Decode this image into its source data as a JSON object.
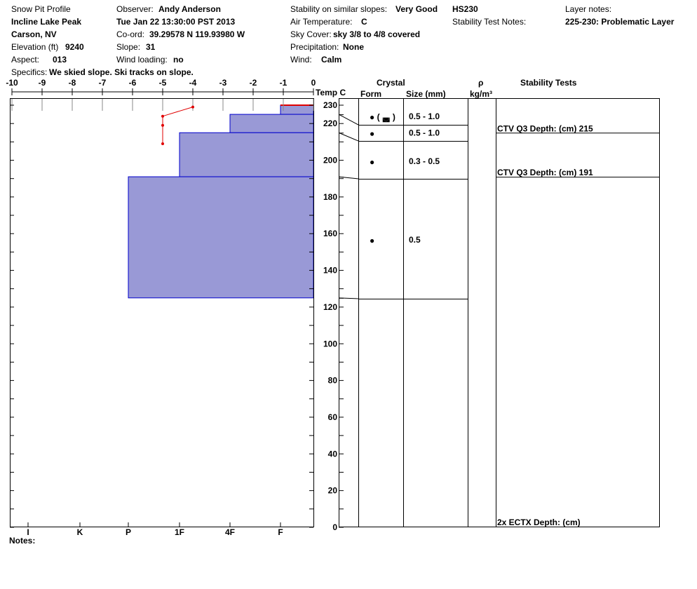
{
  "header": {
    "title": "Snow Pit Profile",
    "location": "Incline Lake Peak",
    "region": "Carson, NV",
    "elevation_label": "Elevation (ft)",
    "elevation": "9240",
    "aspect_label": "Aspect:",
    "aspect": "013",
    "specifics_label": "Specifics:",
    "specifics": "We skied slope. Ski tracks on slope.",
    "observer_label": "Observer:",
    "observer": "Andy Anderson",
    "datetime": "Tue Jan 22 13:30:00 PST 2013",
    "coord_label": "Co-ord:",
    "coord": "39.29578 N 119.93980 W",
    "slope_label": "Slope:",
    "slope": "31",
    "wind_loading_label": "Wind loading:",
    "wind_loading": "no",
    "stability_label": "Stability on similar slopes:",
    "stability": "Very Good",
    "air_temp_label": "Air Temperature:",
    "air_temp": "C",
    "sky_label": "Sky Cover:",
    "sky": "sky 3/8 to 4/8 covered",
    "precip_label": "Precipitation:",
    "precip": "None",
    "wind_label": "Wind:",
    "wind": "Calm",
    "hs": "HS230",
    "stability_notes_label": "Stability Test Notes:",
    "layer_notes_label": "Layer notes:",
    "layer_notes": "225-230: Problematic Layer"
  },
  "notes_label": "Notes:",
  "columns": {
    "temp": "Temp C",
    "crystal": "Crystal",
    "form": "Form",
    "size": "Size (mm)",
    "rho": "ρ",
    "rho_unit": "kg/m³",
    "stability": "Stability Tests"
  },
  "colors": {
    "layer_fill": "#9999d6",
    "layer_edge": "#0000cc",
    "temp_line": "#e00000"
  },
  "chart_data": {
    "type": "snow-profile",
    "temp_ticks": [
      -10,
      -9,
      -8,
      -7,
      -6,
      -5,
      -4,
      -3,
      -2,
      -1,
      0
    ],
    "depth_ticks": [
      0,
      20,
      40,
      60,
      80,
      100,
      120,
      140,
      160,
      180,
      200,
      220,
      230
    ],
    "hardness_ticks": [
      "I",
      "K",
      "P",
      "1F",
      "4F",
      "F"
    ],
    "temperature": [
      {
        "depth": 229,
        "temp": -4
      },
      {
        "depth": 224,
        "temp": -5
      },
      {
        "depth": 219,
        "temp": -5
      },
      {
        "depth": 209,
        "temp": -5
      }
    ],
    "layers": [
      {
        "top": 230,
        "bottom": 225,
        "hardness": "F",
        "form": "● ( ◛ )",
        "size": "0.5 - 1.0"
      },
      {
        "top": 225,
        "bottom": 215,
        "hardness": "4F",
        "form": "●",
        "size": "0.5 - 1.0"
      },
      {
        "top": 215,
        "bottom": 191,
        "hardness": "1F",
        "form": "●",
        "size": "0.3 - 0.5"
      },
      {
        "top": 191,
        "bottom": 125,
        "hardness": "P",
        "form": "●",
        "size": "0.5"
      }
    ],
    "crystal_bounds": [
      225,
      220,
      191,
      125
    ],
    "stability_tests": [
      {
        "depth": 215,
        "label": "CTV Q3 Depth: (cm) 215"
      },
      {
        "depth": 191,
        "label": "CTV Q3 Depth: (cm) 191"
      },
      {
        "depth": 0,
        "label": "2x ECTX   Depth: (cm)"
      }
    ]
  }
}
